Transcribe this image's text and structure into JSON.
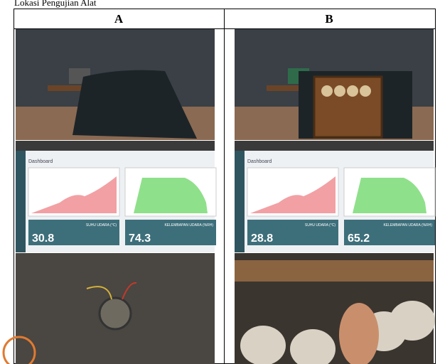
{
  "caption": "Lokasi Pengujian Alat",
  "table": {
    "headers": [
      "A",
      "B"
    ],
    "columns": [
      {
        "dashboard": {
          "title": "Dashboard",
          "temperature": {
            "label": "SUHU UDARA (°C)",
            "value": "30.8"
          },
          "humidity": {
            "label": "KELEMBAPAN UDARA (%RH)",
            "value": "74.3"
          }
        }
      },
      {
        "dashboard": {
          "title": "Dashboard",
          "temperature": {
            "label": "SUHU UDARA (°C)",
            "value": "28.8"
          },
          "humidity": {
            "label": "KELEMBAPAN UDARA (%RH)",
            "value": "65.2"
          }
        }
      }
    ]
  }
}
